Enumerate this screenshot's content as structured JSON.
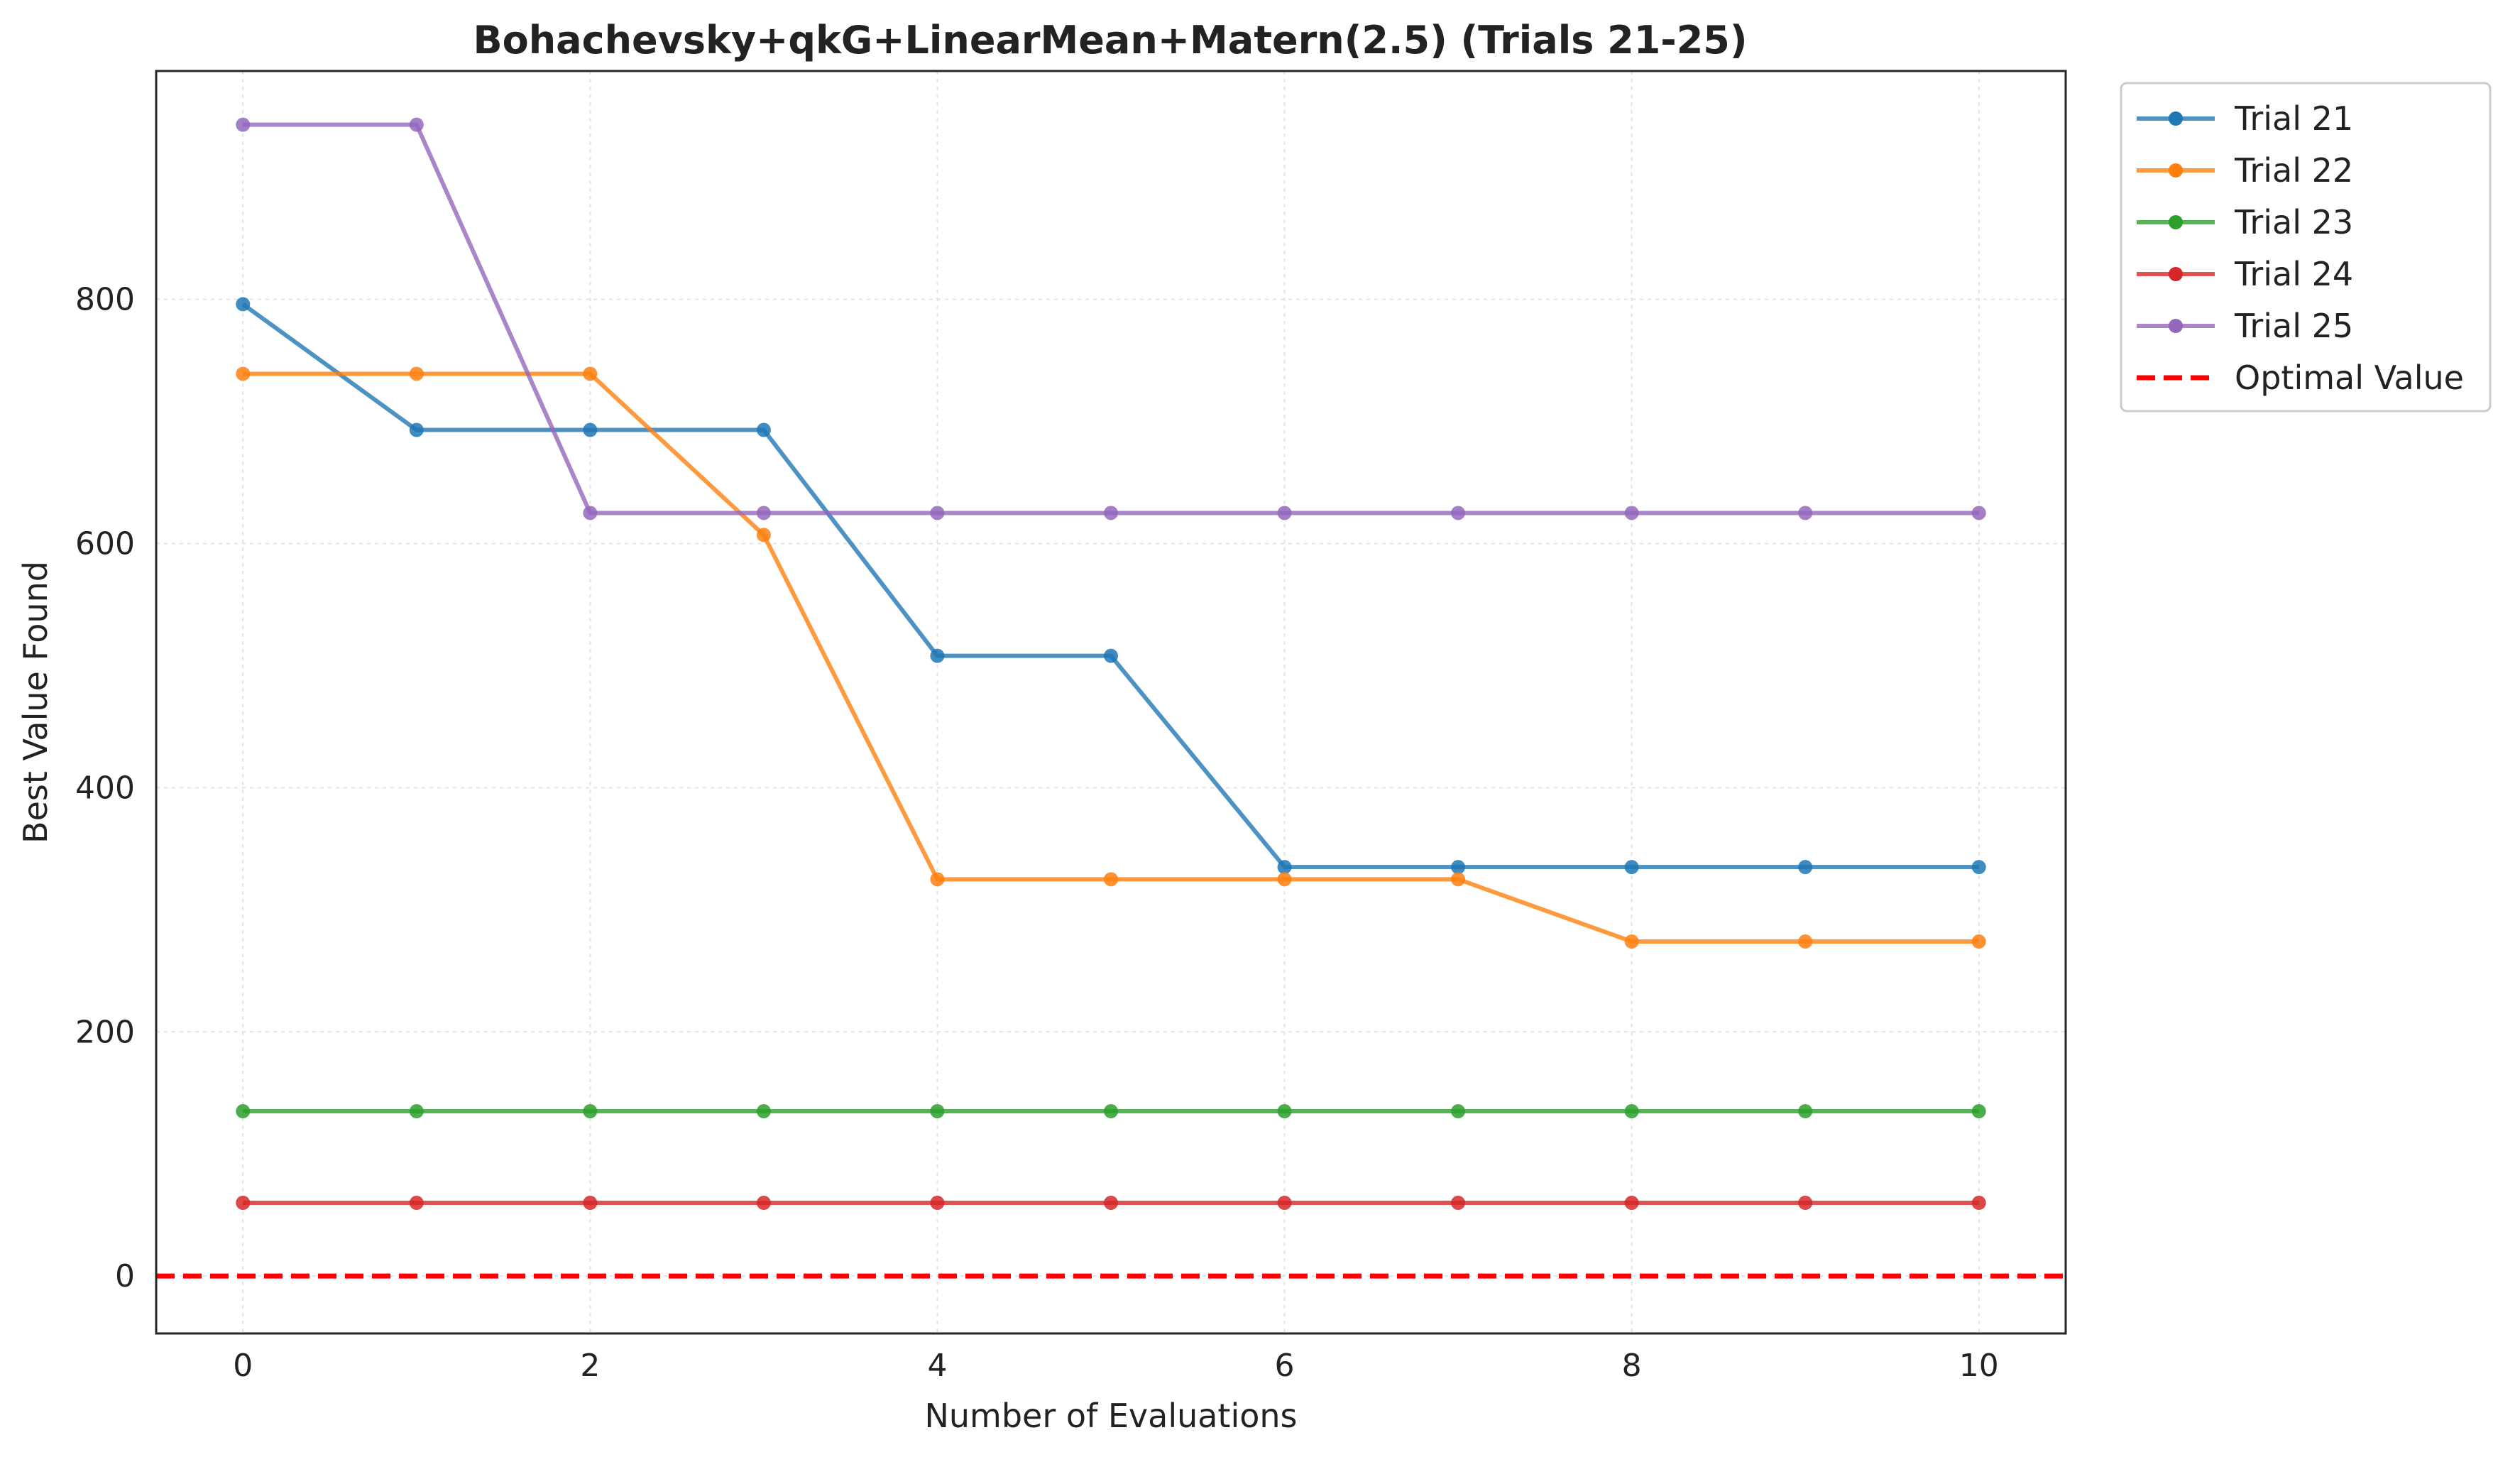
{
  "chart_data": {
    "type": "line",
    "title": "Bohachevsky+qkG+LinearMean+Matern(2.5) (Trials 21-25)",
    "xlabel": "Number of Evaluations",
    "ylabel": "Best Value Found",
    "xlim": [
      -0.5,
      10.5
    ],
    "ylim": [
      -47,
      987
    ],
    "xticks": [
      0,
      2,
      4,
      6,
      8,
      10
    ],
    "yticks": [
      0,
      200,
      400,
      600,
      800
    ],
    "grid": true,
    "legend_position": "outside-top-right",
    "x": [
      0,
      1,
      2,
      3,
      4,
      5,
      6,
      7,
      8,
      9,
      10
    ],
    "series": [
      {
        "name": "Trial 21",
        "color": "#1f77b4",
        "values": [
          796,
          693,
          693,
          693,
          508,
          508,
          335,
          335,
          335,
          335,
          335
        ]
      },
      {
        "name": "Trial 22",
        "color": "#ff7f0e",
        "values": [
          739,
          739,
          739,
          607,
          325,
          325,
          325,
          325,
          274,
          274,
          274
        ]
      },
      {
        "name": "Trial 23",
        "color": "#2ca02c",
        "values": [
          135,
          135,
          135,
          135,
          135,
          135,
          135,
          135,
          135,
          135,
          135
        ]
      },
      {
        "name": "Trial 24",
        "color": "#d62728",
        "values": [
          60,
          60,
          60,
          60,
          60,
          60,
          60,
          60,
          60,
          60,
          60
        ]
      },
      {
        "name": "Trial 25",
        "color": "#9467bd",
        "values": [
          943,
          943,
          625,
          625,
          625,
          625,
          625,
          625,
          625,
          625,
          625
        ]
      }
    ],
    "reference_line": {
      "name": "Optimal Value",
      "value": 0,
      "color": "#ff0000",
      "style": "dashed"
    }
  }
}
